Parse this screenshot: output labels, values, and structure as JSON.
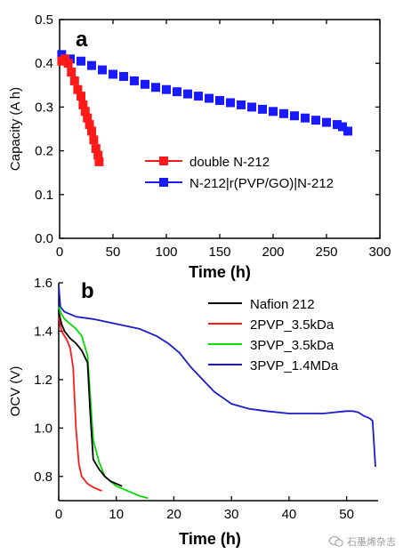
{
  "chart_data": [
    {
      "type": "scatter",
      "panel_label": "a",
      "xlabel": "Time (h)",
      "ylabel": "Capacity (A h)",
      "xlim": [
        0,
        300
      ],
      "ylim": [
        0.0,
        0.5
      ],
      "xticks": [
        "0",
        "50",
        "100",
        "150",
        "200",
        "250",
        "300"
      ],
      "yticks": [
        "0.0",
        "0.1",
        "0.2",
        "0.3",
        "0.4",
        "0.5"
      ],
      "legend_position": "bottom-right",
      "series": [
        {
          "name": "double N-212",
          "color": "#ff1a1a",
          "marker": "square",
          "x": [
            2,
            5,
            8,
            11,
            14,
            17,
            20,
            22,
            24,
            26,
            28,
            30,
            32,
            34,
            36,
            37
          ],
          "y": [
            0.405,
            0.41,
            0.4,
            0.38,
            0.36,
            0.34,
            0.325,
            0.305,
            0.29,
            0.275,
            0.26,
            0.245,
            0.225,
            0.205,
            0.19,
            0.175
          ]
        },
        {
          "name": "N-212|r(PVP/GO)|N-212",
          "color": "#1a1aff",
          "marker": "square",
          "x": [
            2,
            10,
            20,
            30,
            40,
            50,
            60,
            70,
            80,
            90,
            100,
            110,
            120,
            130,
            140,
            150,
            160,
            170,
            180,
            190,
            200,
            210,
            220,
            230,
            240,
            250,
            260,
            265,
            270
          ],
          "y": [
            0.42,
            0.41,
            0.405,
            0.395,
            0.385,
            0.375,
            0.37,
            0.36,
            0.352,
            0.345,
            0.34,
            0.335,
            0.33,
            0.325,
            0.32,
            0.315,
            0.31,
            0.305,
            0.3,
            0.295,
            0.29,
            0.285,
            0.28,
            0.275,
            0.27,
            0.265,
            0.26,
            0.255,
            0.245
          ]
        }
      ]
    },
    {
      "type": "line",
      "panel_label": "b",
      "xlabel": "Time (h)",
      "ylabel": "OCV (V)",
      "xlim": [
        0,
        55
      ],
      "ylim": [
        0.7,
        1.6
      ],
      "xticks": [
        "0",
        "10",
        "20",
        "30",
        "40",
        "50"
      ],
      "yticks": [
        "0.8",
        "1.0",
        "1.2",
        "1.4",
        "1.6"
      ],
      "legend_position": "top-right",
      "series": [
        {
          "name": "Nafion 212",
          "color": "#000000",
          "x": [
            0,
            0.5,
            1,
            2,
            3,
            4,
            5,
            5.5,
            6,
            7,
            8,
            9,
            10,
            11
          ],
          "y": [
            1.48,
            1.43,
            1.4,
            1.37,
            1.35,
            1.32,
            1.27,
            1.05,
            0.87,
            0.83,
            0.8,
            0.78,
            0.77,
            0.76
          ]
        },
        {
          "name": "2PVP_3.5kDa",
          "color": "#ff1a1a",
          "x": [
            0,
            0.5,
            1,
            1.5,
            2,
            2.5,
            3,
            3.5,
            4,
            5,
            6,
            7,
            7.5
          ],
          "y": [
            1.46,
            1.4,
            1.38,
            1.36,
            1.33,
            1.25,
            1.0,
            0.85,
            0.8,
            0.77,
            0.755,
            0.745,
            0.74
          ]
        },
        {
          "name": "3PVP_3.5kDa",
          "color": "#00dd00",
          "x": [
            0,
            0.5,
            1,
            2,
            3,
            4,
            5,
            6,
            7,
            8,
            10,
            12,
            14,
            15.5
          ],
          "y": [
            1.5,
            1.47,
            1.45,
            1.43,
            1.41,
            1.38,
            1.3,
            0.95,
            0.86,
            0.8,
            0.76,
            0.74,
            0.72,
            0.71
          ]
        },
        {
          "name": "3PVP_1.4MDa",
          "color": "#1a1acc",
          "x": [
            0,
            0.3,
            1,
            3,
            6,
            10,
            14,
            17,
            19,
            21,
            23,
            25,
            27,
            30,
            33,
            36,
            40,
            43,
            46,
            48,
            50,
            51,
            52,
            53,
            54,
            54.5,
            55
          ],
          "y": [
            1.59,
            1.5,
            1.48,
            1.46,
            1.45,
            1.43,
            1.41,
            1.38,
            1.35,
            1.31,
            1.25,
            1.2,
            1.15,
            1.1,
            1.08,
            1.07,
            1.06,
            1.06,
            1.06,
            1.065,
            1.07,
            1.07,
            1.065,
            1.05,
            1.04,
            1.03,
            0.84
          ]
        }
      ]
    }
  ],
  "watermark": {
    "text": "石墨烯杂志",
    "icon": "wechat-logo-icon"
  }
}
